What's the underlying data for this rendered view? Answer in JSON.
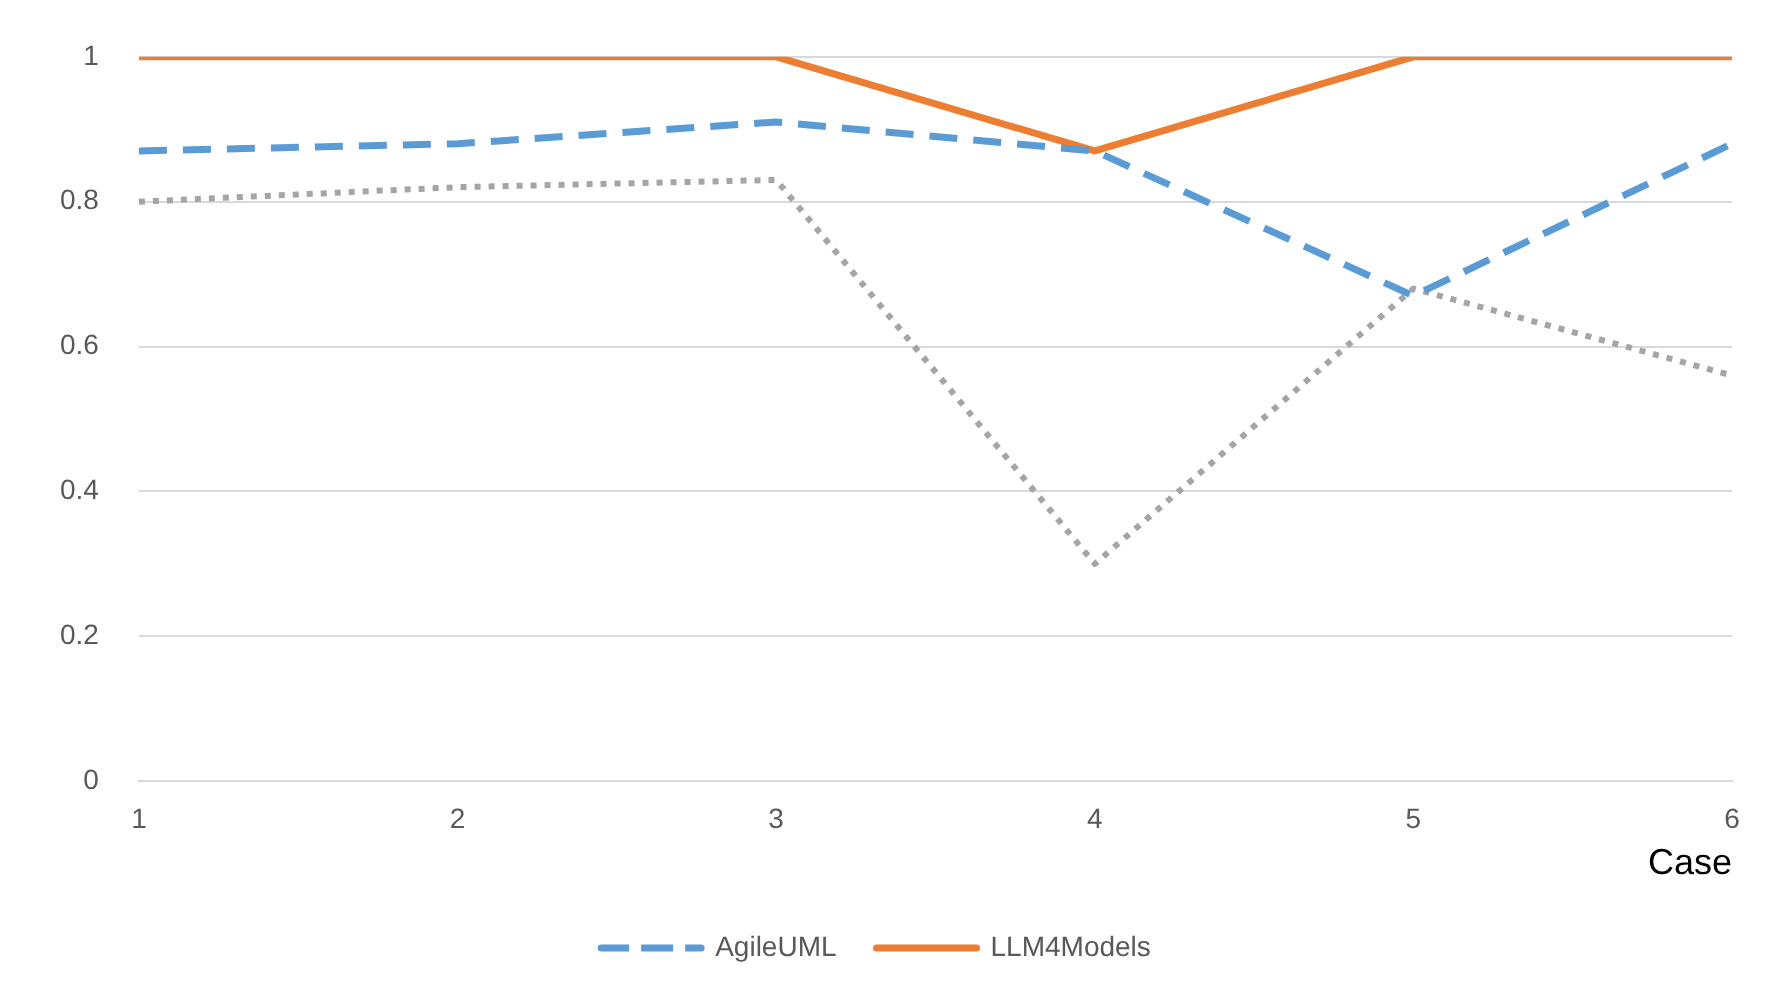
{
  "chart_data": {
    "type": "line",
    "xlabel": "Case",
    "categories": [
      "1",
      "2",
      "3",
      "4",
      "5",
      "6"
    ],
    "series": [
      {
        "name": "AgileUML",
        "color": "#5b9bd5",
        "line_style": "dashed",
        "values": [
          0.87,
          0.88,
          0.91,
          0.87,
          0.67,
          0.88
        ]
      },
      {
        "name": "LLM4Models",
        "color": "#ed7d31",
        "line_style": "solid",
        "values": [
          1,
          1,
          1,
          0.87,
          1,
          1
        ]
      },
      {
        "color": "#a5a5a5",
        "line_style": "dotted",
        "values": [
          0.8,
          0.82,
          0.83,
          0.3,
          0.68,
          0.56
        ]
      }
    ],
    "ylim": [
      0,
      1
    ],
    "yticks": [
      0,
      0.2,
      0.4,
      0.6,
      0.8,
      1
    ],
    "grid": "y",
    "legend": "bottom",
    "marker": "none"
  }
}
